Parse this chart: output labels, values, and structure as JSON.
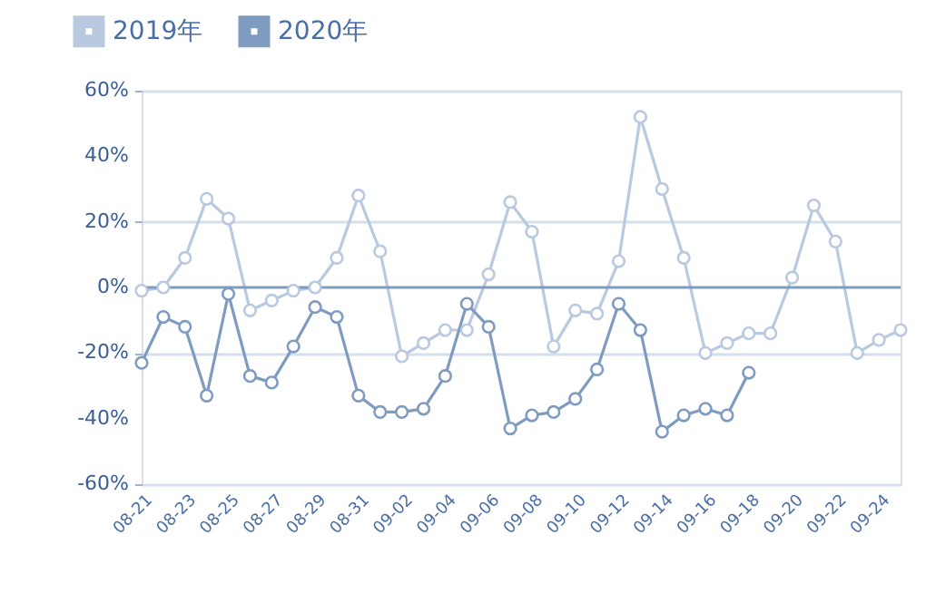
{
  "chart_data": {
    "type": "line",
    "categories": [
      "08-21",
      null,
      "08-23",
      null,
      "08-25",
      null,
      "08-27",
      null,
      "08-29",
      null,
      "08-31",
      null,
      "09-02",
      null,
      "09-04",
      null,
      "09-06",
      null,
      "09-08",
      null,
      "09-10",
      null,
      "09-12",
      null,
      "09-14",
      null,
      "09-16",
      null,
      "09-18",
      null,
      "09-20",
      null,
      "09-22",
      null,
      "09-24",
      null
    ],
    "series": [
      {
        "name": "2019年",
        "color": "#b8c9e0",
        "values": [
          -1,
          0,
          9,
          27,
          21,
          -7,
          -4,
          -1,
          0,
          9,
          28,
          11,
          -21,
          -17,
          -13,
          -13,
          4,
          26,
          17,
          -18,
          -7,
          -8,
          8,
          52,
          30,
          9,
          -20,
          -17,
          -14,
          -14,
          3,
          25,
          14,
          -20,
          -16,
          -13
        ]
      },
      {
        "name": "2020年",
        "color": "#7f9cc0",
        "values": [
          -23,
          -9,
          -12,
          -33,
          -2,
          -27,
          -29,
          -18,
          -6,
          -9,
          -33,
          -38,
          -38,
          -37,
          -27,
          -5,
          -12,
          -43,
          -39,
          -38,
          -34,
          -25,
          -5,
          -13,
          -44,
          -39,
          -37,
          -39,
          -26,
          null,
          null,
          null,
          null,
          null,
          null,
          null
        ]
      }
    ],
    "ylim": [
      -60,
      60
    ],
    "yticks": [
      {
        "value": -60,
        "label": "-60%"
      },
      {
        "value": -40,
        "label": "-40%"
      },
      {
        "value": -20,
        "label": "-20%"
      },
      {
        "value": 0,
        "label": "0%"
      },
      {
        "value": 20,
        "label": "20%"
      },
      {
        "value": 40,
        "label": "40%"
      },
      {
        "value": 60,
        "label": "60%"
      }
    ],
    "ref_lines": [
      {
        "axis": "y",
        "value": 0,
        "color": "#7f9cc0"
      }
    ],
    "grid": "y",
    "legend": "top left",
    "marker": "circle",
    "line_style": "solid"
  }
}
